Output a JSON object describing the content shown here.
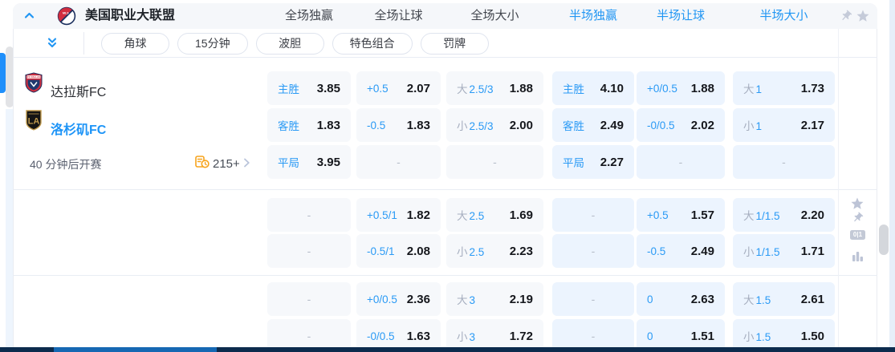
{
  "league": {
    "name": "美国职业大联盟"
  },
  "topbar": {
    "columns": [
      {
        "label": "全场独赢",
        "half": false
      },
      {
        "label": "全场让球",
        "half": false
      },
      {
        "label": "全场大小",
        "half": false
      },
      {
        "label": "半场独赢",
        "half": true
      },
      {
        "label": "半场让球",
        "half": true
      },
      {
        "label": "半场大小",
        "half": true
      }
    ]
  },
  "tabs": [
    {
      "label": "角球"
    },
    {
      "label": "15分钟"
    },
    {
      "label": "波胆"
    },
    {
      "label": "特色组合"
    },
    {
      "label": "罚牌"
    }
  ],
  "match": {
    "home": {
      "name": "达拉斯FC"
    },
    "away": {
      "name": "洛杉矶FC"
    },
    "kickoff": "40 分钟后开赛",
    "markets_count": "215+"
  },
  "odds": {
    "dash": "-",
    "groups": [
      {
        "rows": [
          [
            {
              "t": "主胜",
              "v": "3.85"
            },
            {
              "t": "+0.5",
              "v": "2.07"
            },
            {
              "p": "大",
              "t": "2.5/3",
              "v": "1.88"
            },
            {
              "t": "主胜",
              "v": "4.10"
            },
            {
              "t": "+0/0.5",
              "v": "1.88"
            },
            {
              "p": "大",
              "t": "1",
              "v": "1.73"
            }
          ],
          [
            {
              "t": "客胜",
              "v": "1.83"
            },
            {
              "t": "-0.5",
              "v": "1.83"
            },
            {
              "p": "小",
              "t": "2.5/3",
              "v": "2.00"
            },
            {
              "t": "客胜",
              "v": "2.49"
            },
            {
              "t": "-0/0.5",
              "v": "2.02"
            },
            {
              "p": "小",
              "t": "1",
              "v": "2.17"
            }
          ],
          [
            {
              "t": "平局",
              "v": "3.95"
            },
            {
              "dash": true
            },
            {
              "dash": true
            },
            {
              "t": "平局",
              "v": "2.27"
            },
            {
              "dash": true
            },
            {
              "dash": true
            }
          ]
        ]
      },
      {
        "rows": [
          [
            {
              "dash": true
            },
            {
              "t": "+0.5/1",
              "v": "1.82"
            },
            {
              "p": "大",
              "t": "2.5",
              "v": "1.69"
            },
            {
              "dash": true
            },
            {
              "t": "+0.5",
              "v": "1.57"
            },
            {
              "p": "大",
              "t": "1/1.5",
              "v": "2.20"
            }
          ],
          [
            {
              "dash": true
            },
            {
              "t": "-0.5/1",
              "v": "2.08"
            },
            {
              "p": "小",
              "t": "2.5",
              "v": "2.23"
            },
            {
              "dash": true
            },
            {
              "t": "-0.5",
              "v": "2.49"
            },
            {
              "p": "小",
              "t": "1/1.5",
              "v": "1.71"
            }
          ]
        ]
      },
      {
        "rows": [
          [
            {
              "dash": true
            },
            {
              "t": "+0/0.5",
              "v": "2.36"
            },
            {
              "p": "大",
              "t": "3",
              "v": "2.19"
            },
            {
              "dash": true
            },
            {
              "t": "0",
              "v": "2.63"
            },
            {
              "p": "大",
              "t": "1.5",
              "v": "2.61"
            }
          ],
          [
            {
              "dash": true
            },
            {
              "t": "-0/0.5",
              "v": "1.63"
            },
            {
              "p": "小",
              "t": "3",
              "v": "1.72"
            },
            {
              "dash": true
            },
            {
              "t": "0",
              "v": "1.51"
            },
            {
              "p": "小",
              "t": "1.5",
              "v": "1.50"
            }
          ]
        ]
      }
    ]
  },
  "icons": {
    "collapse": "chevron-up",
    "expand_markets": "double-chevron-down",
    "pin": "pushpin",
    "favorite": "star",
    "more": "chevron-right",
    "markets": "doc-clock",
    "binary_badge": "0|1",
    "stats": "bar-chart"
  },
  "colors": {
    "accent": "#2196f3",
    "fulltime_cell_bg": "#f6f8fb",
    "halftime_cell_bg": "#ecf4fe",
    "topbar_bg": "#f5f7fa",
    "bottom_bar": "#0c2b4d",
    "bottom_bar_progress": "#1668b3"
  }
}
